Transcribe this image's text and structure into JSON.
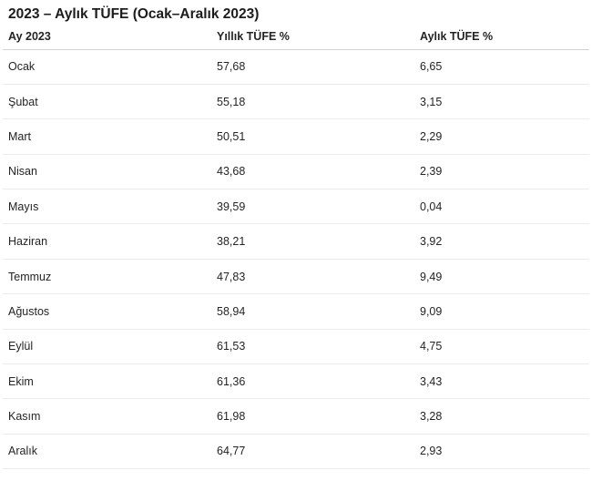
{
  "page": {
    "title": "2023 – Aylık TÜFE (Ocak–Aralık 2023)"
  },
  "table": {
    "headers": [
      "Ay 2023",
      "Yıllık TÜFE %",
      "Aylık TÜFE %"
    ],
    "rows": [
      {
        "month": "Ocak",
        "annual": "57,68",
        "monthly": "6,65"
      },
      {
        "month": "Şubat",
        "annual": "55,18",
        "monthly": "3,15"
      },
      {
        "month": "Mart",
        "annual": "50,51",
        "monthly": "2,29"
      },
      {
        "month": "Nisan",
        "annual": "43,68",
        "monthly": "2,39"
      },
      {
        "month": "Mayıs",
        "annual": "39,59",
        "monthly": "0,04"
      },
      {
        "month": "Haziran",
        "annual": "38,21",
        "monthly": "3,92"
      },
      {
        "month": "Temmuz",
        "annual": "47,83",
        "monthly": "9,49"
      },
      {
        "month": "Ağustos",
        "annual": "58,94",
        "monthly": "9,09"
      },
      {
        "month": "Eylül",
        "annual": "61,53",
        "monthly": "4,75"
      },
      {
        "month": "Ekim",
        "annual": "61,36",
        "monthly": "3,43"
      },
      {
        "month": "Kasım",
        "annual": "61,98",
        "monthly": "3,28"
      },
      {
        "month": "Aralık",
        "annual": "64,77",
        "monthly": "2,93"
      }
    ]
  },
  "colors": {
    "background": "#ffffff",
    "text": "#242424",
    "title_text": "#1c1c1c",
    "header_border": "#d2d2d2",
    "row_border": "#ebebeb"
  }
}
